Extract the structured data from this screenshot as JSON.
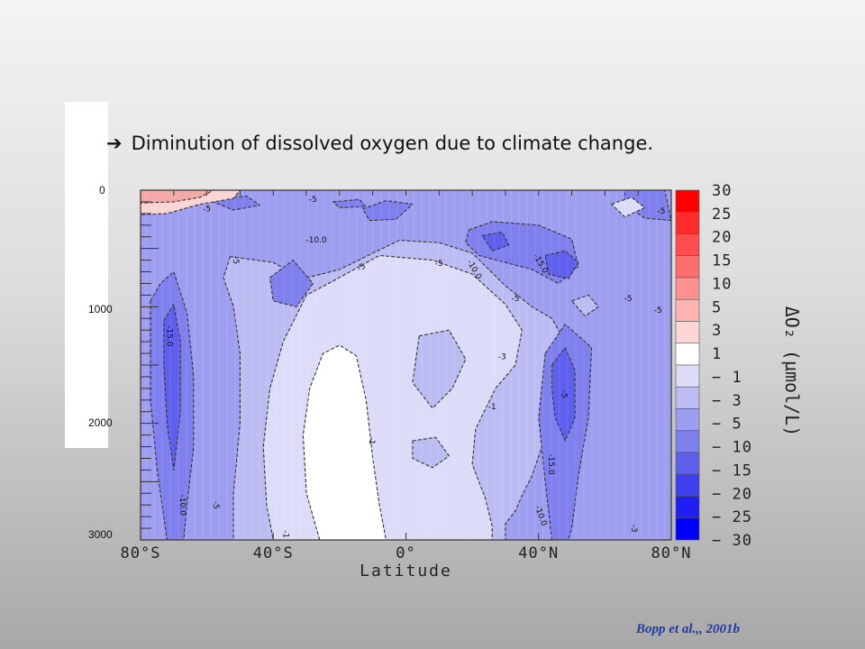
{
  "headline": {
    "arrow": "➔",
    "text": "Diminution of dissolved oxygen due to climate change."
  },
  "chart_data": {
    "type": "heatmap",
    "xlabel": "Latitude",
    "x_ticks": [
      "80°S",
      "40°S",
      "0°",
      "40°N",
      "80°N"
    ],
    "x_tick_values": [
      -80,
      -40,
      0,
      40,
      80
    ],
    "xlim": [
      -80,
      80
    ],
    "y_ticks": [
      "0",
      "1000",
      "2000",
      "3000"
    ],
    "y_tick_values": [
      0,
      1000,
      2000,
      3000
    ],
    "ylim": [
      3000,
      0
    ],
    "colorbar_label": "ΔO₂ (µmol/L)",
    "colorbar_levels": [
      "30",
      "25",
      "20",
      "15",
      "10",
      "5",
      "3",
      "1",
      "− 1",
      "− 3",
      "− 5",
      "− 10",
      "− 15",
      "− 20",
      "− 25",
      "− 30"
    ],
    "colorbar_colors": [
      "#ff0000",
      "#ff2a2a",
      "#ff4d4d",
      "#ff6e6e",
      "#ff9090",
      "#ffb3b3",
      "#ffd6d6",
      "#ffffff",
      "#dcdcf8",
      "#bcbcf3",
      "#9e9ef0",
      "#7f7fee",
      "#5f5fee",
      "#3f3ff0",
      "#1f1ff4",
      "#0000ff"
    ],
    "fill_colors": {
      "pos_5": "#f4a8a8",
      "pos_1": "#fbd4d4",
      "neg_1": "#dcdcf8",
      "neg_3": "#bcbcf3",
      "neg_5": "#9e9ef0",
      "neg_10": "#7f7fee",
      "neg_15": "#5f5fee",
      "white": "#ffffff"
    },
    "regions": [
      {
        "level": "neg_5",
        "points": [
          [
            -80,
            0
          ],
          [
            80,
            0
          ],
          [
            80,
            3000
          ],
          [
            -80,
            3000
          ]
        ]
      },
      {
        "level": "neg_3",
        "points": [
          [
            -53,
            570
          ],
          [
            -40,
            620
          ],
          [
            -31,
            760
          ],
          [
            -20,
            680
          ],
          [
            -2,
            430
          ],
          [
            10,
            450
          ],
          [
            20,
            540
          ],
          [
            30,
            820
          ],
          [
            38,
            1000
          ],
          [
            44,
            1100
          ],
          [
            48,
            1300
          ],
          [
            47,
            1600
          ],
          [
            44,
            1900
          ],
          [
            41,
            2200
          ],
          [
            38,
            2450
          ],
          [
            35,
            2620
          ],
          [
            33,
            2750
          ],
          [
            30,
            2860
          ],
          [
            30,
            3000
          ],
          [
            -52,
            3000
          ],
          [
            -52,
            2600
          ],
          [
            -50,
            2000
          ],
          [
            -50,
            1400
          ],
          [
            -52,
            1000
          ],
          [
            -55,
            750
          ]
        ]
      },
      {
        "level": "neg_1",
        "points": [
          [
            -22,
            780
          ],
          [
            -8,
            560
          ],
          [
            8,
            600
          ],
          [
            20,
            720
          ],
          [
            30,
            980
          ],
          [
            35,
            1200
          ],
          [
            33,
            1500
          ],
          [
            27,
            1700
          ],
          [
            21,
            2050
          ],
          [
            20,
            2350
          ],
          [
            24,
            2650
          ],
          [
            26,
            2880
          ],
          [
            26,
            3000
          ],
          [
            -40,
            3000
          ],
          [
            -42,
            2700
          ],
          [
            -43,
            2200
          ],
          [
            -41,
            1700
          ],
          [
            -37,
            1300
          ],
          [
            -30,
            900
          ]
        ]
      },
      {
        "level": "neg_3",
        "points": [
          [
            4,
            1250
          ],
          [
            13,
            1200
          ],
          [
            18,
            1450
          ],
          [
            14,
            1700
          ],
          [
            8,
            1870
          ],
          [
            2,
            1650
          ]
        ]
      },
      {
        "level": "neg_3",
        "points": [
          [
            2,
            2150
          ],
          [
            9,
            2120
          ],
          [
            13,
            2280
          ],
          [
            8,
            2380
          ],
          [
            2,
            2300
          ]
        ]
      },
      {
        "level": "white",
        "points": [
          [
            -26,
            3000
          ],
          [
            -30,
            2600
          ],
          [
            -31,
            2100
          ],
          [
            -29,
            1700
          ],
          [
            -25,
            1400
          ],
          [
            -20,
            1330
          ],
          [
            -15,
            1420
          ],
          [
            -12,
            1800
          ],
          [
            -10,
            2300
          ],
          [
            -8,
            2700
          ],
          [
            -6,
            3000
          ]
        ]
      },
      {
        "level": "neg_10",
        "points": [
          [
            -77,
            950
          ],
          [
            -74,
            800
          ],
          [
            -70,
            700
          ],
          [
            -66,
            1050
          ],
          [
            -64,
            1600
          ],
          [
            -64,
            2200
          ],
          [
            -66,
            2700
          ],
          [
            -67,
            3000
          ],
          [
            -72,
            3000
          ],
          [
            -75,
            2400
          ],
          [
            -77,
            1800
          ]
        ]
      },
      {
        "level": "neg_15",
        "points": [
          [
            -73,
            1120
          ],
          [
            -70,
            980
          ],
          [
            -68,
            1300
          ],
          [
            -68,
            1900
          ],
          [
            -70,
            2400
          ],
          [
            -72,
            2000
          ],
          [
            -73,
            1500
          ]
        ]
      },
      {
        "level": "neg_10",
        "points": [
          [
            -41,
            750
          ],
          [
            -34,
            600
          ],
          [
            -28,
            800
          ],
          [
            -33,
            1000
          ],
          [
            -40,
            950
          ]
        ]
      },
      {
        "level": "neg_10",
        "points": [
          [
            -13,
            160
          ],
          [
            -6,
            90
          ],
          [
            2,
            120
          ],
          [
            -3,
            250
          ],
          [
            -11,
            260
          ]
        ]
      },
      {
        "level": "neg_10",
        "points": [
          [
            19,
            340
          ],
          [
            26,
            270
          ],
          [
            40,
            300
          ],
          [
            50,
            420
          ],
          [
            52,
            650
          ],
          [
            46,
            800
          ],
          [
            38,
            680
          ],
          [
            30,
            620
          ],
          [
            22,
            560
          ],
          [
            18,
            450
          ]
        ]
      },
      {
        "level": "neg_15",
        "points": [
          [
            23,
            390
          ],
          [
            29,
            360
          ],
          [
            31,
            470
          ],
          [
            26,
            520
          ]
        ]
      },
      {
        "level": "neg_15",
        "points": [
          [
            42,
            560
          ],
          [
            48,
            520
          ],
          [
            52,
            620
          ],
          [
            49,
            760
          ],
          [
            43,
            720
          ]
        ]
      },
      {
        "level": "neg_10",
        "points": [
          [
            42,
            1400
          ],
          [
            48,
            1150
          ],
          [
            56,
            1350
          ],
          [
            55,
            1950
          ],
          [
            52,
            2450
          ],
          [
            50,
            2900
          ],
          [
            49,
            3000
          ],
          [
            44,
            3000
          ],
          [
            42,
            2500
          ],
          [
            40,
            1950
          ]
        ]
      },
      {
        "level": "neg_15",
        "points": [
          [
            44,
            1500
          ],
          [
            48,
            1350
          ],
          [
            51,
            1550
          ],
          [
            51,
            1950
          ],
          [
            48,
            2150
          ],
          [
            45,
            1950
          ],
          [
            44,
            1700
          ]
        ]
      },
      {
        "level": "neg_10",
        "points": [
          [
            66,
            0
          ],
          [
            78,
            0
          ],
          [
            80,
            260
          ],
          [
            72,
            240
          ],
          [
            66,
            120
          ]
        ]
      },
      {
        "level": "neg_10",
        "points": [
          [
            -60,
            80
          ],
          [
            -48,
            50
          ],
          [
            -44,
            130
          ],
          [
            -52,
            170
          ]
        ]
      },
      {
        "level": "neg_10",
        "points": [
          [
            -22,
            100
          ],
          [
            -14,
            80
          ],
          [
            -12,
            140
          ],
          [
            -20,
            150
          ]
        ]
      },
      {
        "level": "neg_3",
        "points": [
          [
            50,
            950
          ],
          [
            55,
            900
          ],
          [
            58,
            1000
          ],
          [
            54,
            1080
          ]
        ]
      },
      {
        "level": "neg_1",
        "points": [
          [
            62,
            120
          ],
          [
            68,
            60
          ],
          [
            72,
            150
          ],
          [
            66,
            230
          ]
        ]
      },
      {
        "level": "pos_1",
        "points": [
          [
            -80,
            0
          ],
          [
            -50,
            0
          ],
          [
            -52,
            70
          ],
          [
            -62,
            120
          ],
          [
            -72,
            200
          ],
          [
            -80,
            210
          ]
        ]
      },
      {
        "level": "pos_5",
        "points": [
          [
            -80,
            0
          ],
          [
            -58,
            0
          ],
          [
            -62,
            60
          ],
          [
            -70,
            100
          ],
          [
            -80,
            110
          ]
        ]
      }
    ],
    "contour_labels": [
      {
        "text": "-15.0",
        "x": -72,
        "y": 1250,
        "r": 90
      },
      {
        "text": "-10.0",
        "x": -68,
        "y": 2700,
        "r": 90
      },
      {
        "text": "-5",
        "x": -58,
        "y": 2700,
        "r": 90
      },
      {
        "text": "-1",
        "x": -37,
        "y": 2950,
        "r": 90
      },
      {
        "text": "-1",
        "x": -11,
        "y": 2150,
        "r": 90
      },
      {
        "text": "-5",
        "x": -52,
        "y": 600,
        "r": 90
      },
      {
        "text": "-5",
        "x": -60,
        "y": 180,
        "r": 0
      },
      {
        "text": "-10.0",
        "x": -27,
        "y": 450,
        "r": 0
      },
      {
        "text": "-5",
        "x": -13,
        "y": 680,
        "r": -35
      },
      {
        "text": "-3",
        "x": 29,
        "y": 1450,
        "r": 0
      },
      {
        "text": "-1",
        "x": 26,
        "y": 1880,
        "r": 0
      },
      {
        "text": "-10.0",
        "x": 20,
        "y": 690,
        "r": 60
      },
      {
        "text": "-15.0",
        "x": 40,
        "y": 640,
        "r": 60
      },
      {
        "text": "-5",
        "x": 33,
        "y": 950,
        "r": 0
      },
      {
        "text": "-5",
        "x": 47,
        "y": 1750,
        "r": 90
      },
      {
        "text": "-15.0",
        "x": 43,
        "y": 2350,
        "r": 90
      },
      {
        "text": "-10.0",
        "x": 40,
        "y": 2800,
        "r": 70
      },
      {
        "text": "-3",
        "x": 68,
        "y": 2900,
        "r": 90
      },
      {
        "text": "-5",
        "x": 67,
        "y": 950,
        "r": 0
      },
      {
        "text": "-5",
        "x": 76,
        "y": 1050,
        "r": 0
      },
      {
        "text": "-5",
        "x": 77,
        "y": 200,
        "r": 0
      },
      {
        "text": "-5",
        "x": -28,
        "y": 100,
        "r": 0
      },
      {
        "text": "-5",
        "x": 10,
        "y": 650,
        "r": 0
      }
    ]
  },
  "citation": "Bopp et al.,, 2001b"
}
